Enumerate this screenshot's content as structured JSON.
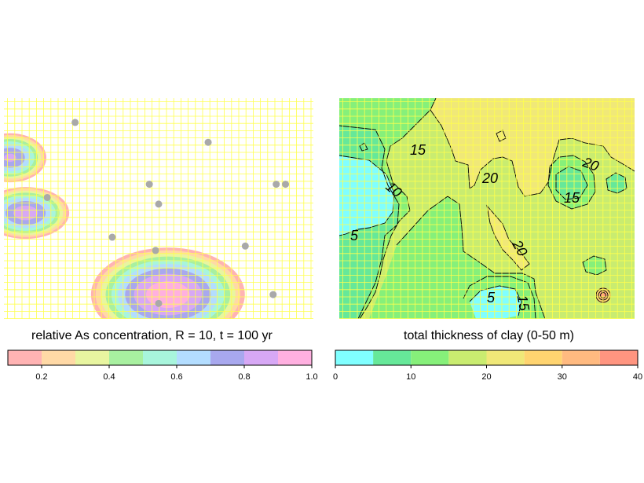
{
  "chart_data": [
    {
      "type": "heatmap",
      "title": "relative As concentration, R = 10, t = 100 yr",
      "grid": true,
      "grid_color": "#ffff4d",
      "colorbar": {
        "breaks": [
          0.1,
          0.2,
          0.3,
          0.4,
          0.5,
          0.6,
          0.7,
          0.8,
          0.9,
          1.0
        ],
        "colors": [
          "#ffb3b3",
          "#ffd9a6",
          "#e8f5a0",
          "#a8f0a0",
          "#a8f5dc",
          "#b3ddff",
          "#a8a8ee",
          "#d7a8f5",
          "#ffb0e0"
        ],
        "tick_labels": [
          "0.2",
          "0.4",
          "0.6",
          "0.8",
          "1.0"
        ],
        "tick_values": [
          0.2,
          0.4,
          0.6,
          0.8,
          1.0
        ]
      },
      "plumes": [
        {
          "cx": 0.02,
          "cy": 0.27,
          "peak": 0.82,
          "rx": 0.2,
          "ry": 0.19
        },
        {
          "cx": 0.07,
          "cy": 0.52,
          "peak": 0.86,
          "rx": 0.24,
          "ry": 0.2
        },
        {
          "cx": 0.53,
          "cy": 0.89,
          "peak": 0.97,
          "rx": 0.42,
          "ry": 0.36
        }
      ],
      "wells": [
        {
          "x": 0.23,
          "y": 0.11
        },
        {
          "x": 0.66,
          "y": 0.2
        },
        {
          "x": 0.47,
          "y": 0.39
        },
        {
          "x": 0.88,
          "y": 0.39
        },
        {
          "x": 0.91,
          "y": 0.39
        },
        {
          "x": 0.5,
          "y": 0.48
        },
        {
          "x": 0.14,
          "y": 0.45
        },
        {
          "x": 0.35,
          "y": 0.63
        },
        {
          "x": 0.49,
          "y": 0.69
        },
        {
          "x": 0.78,
          "y": 0.67
        },
        {
          "x": 0.87,
          "y": 0.89
        },
        {
          "x": 0.5,
          "y": 0.93
        }
      ]
    },
    {
      "type": "heatmap",
      "title": "total thickness of clay (0-50 m)",
      "grid": true,
      "grid_color": "#ffff4d",
      "colorbar": {
        "breaks": [
          0,
          5,
          10,
          15,
          20,
          25,
          30,
          35,
          40
        ],
        "colors": [
          "#80ffff",
          "#66e899",
          "#86f07a",
          "#c9ec70",
          "#f0e878",
          "#ffd470",
          "#ffba80",
          "#ff9580"
        ],
        "tick_labels": [
          "0",
          "10",
          "20",
          "30",
          "40"
        ],
        "tick_values": [
          0,
          10,
          20,
          30,
          40
        ]
      },
      "contour_labels": [
        "15",
        "10",
        "5",
        "20",
        "20",
        "20",
        "15",
        "5",
        "15"
      ]
    }
  ]
}
